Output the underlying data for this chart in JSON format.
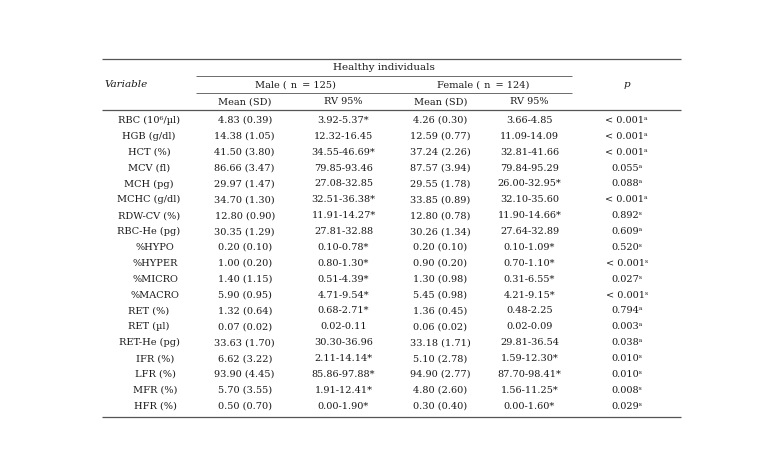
{
  "rows": [
    [
      "RBC (10⁶/µl)",
      "4.83 (0.39)",
      "3.92-5.37*",
      "4.26 (0.30)",
      "3.66-4.85",
      "< 0.001ᵃ"
    ],
    [
      "HGB (g/dl)",
      "14.38 (1.05)",
      "12.32-16.45",
      "12.59 (0.77)",
      "11.09-14.09",
      "< 0.001ᵃ"
    ],
    [
      "HCT (%)",
      "41.50 (3.80)",
      "34.55-46.69*",
      "37.24 (2.26)",
      "32.81-41.66",
      "< 0.001ᵃ"
    ],
    [
      "MCV (fl)",
      "86.66 (3.47)",
      "79.85-93.46",
      "87.57 (3.94)",
      "79.84-95.29",
      "0.055ᵃ"
    ],
    [
      "MCH (pg)",
      "29.97 (1.47)",
      "27.08-32.85",
      "29.55 (1.78)",
      "26.00-32.95*",
      "0.088ᵃ"
    ],
    [
      "MCHC (g/dl)",
      "34.70 (1.30)",
      "32.51-36.38*",
      "33.85 (0.89)",
      "32.10-35.60",
      "< 0.001ᵃ"
    ],
    [
      "RDW-CV (%)",
      "12.80 (0.90)",
      "11.91-14.27*",
      "12.80 (0.78)",
      "11.90-14.66*",
      "0.892ˢ"
    ],
    [
      "RBC-He (pg)",
      "30.35 (1.29)",
      "27.81-32.88",
      "30.26 (1.34)",
      "27.64-32.89",
      "0.609ᵃ"
    ],
    [
      "%HYPO",
      "0.20 (0.10)",
      "0.10-0.78*",
      "0.20 (0.10)",
      "0.10-1.09*",
      "0.520ˢ"
    ],
    [
      "%HYPER",
      "1.00 (0.20)",
      "0.80-1.30*",
      "0.90 (0.20)",
      "0.70-1.10*",
      "< 0.001ˢ"
    ],
    [
      "%MICRO",
      "1.40 (1.15)",
      "0.51-4.39*",
      "1.30 (0.98)",
      "0.31-6.55*",
      "0.027ˢ"
    ],
    [
      "%MACRO",
      "5.90 (0.95)",
      "4.71-9.54*",
      "5.45 (0.98)",
      "4.21-9.15*",
      "< 0.001ˢ"
    ],
    [
      "RET (%)",
      "1.32 (0.64)",
      "0.68-2.71*",
      "1.36 (0.45)",
      "0.48-2.25",
      "0.794ᵃ"
    ],
    [
      "RET (µl)",
      "0.07 (0.02)",
      "0.02-0.11",
      "0.06 (0.02)",
      "0.02-0.09",
      "0.003ᵃ"
    ],
    [
      "RET-He (pg)",
      "33.63 (1.70)",
      "30.30-36.96",
      "33.18 (1.71)",
      "29.81-36.54",
      "0.038ᵃ"
    ],
    [
      "IFR (%)",
      "6.62 (3.22)",
      "2.11-14.14*",
      "5.10 (2.78)",
      "1.59-12.30*",
      "0.010ˢ"
    ],
    [
      "LFR (%)",
      "93.90 (4.45)",
      "85.86-97.88*",
      "94.90 (2.77)",
      "87.70-98.41*",
      "0.010ˢ"
    ],
    [
      "MFR (%)",
      "5.70 (3.55)",
      "1.91-12.41*",
      "4.80 (2.60)",
      "1.56-11.25*",
      "0.008ˢ"
    ],
    [
      "HFR (%)",
      "0.50 (0.70)",
      "0.00-1.90*",
      "0.30 (0.40)",
      "0.00-1.60*",
      "0.029ˢ"
    ]
  ],
  "indented_rows": [
    8,
    9,
    10,
    11,
    15,
    16,
    17,
    18
  ],
  "bg_color": "#ffffff",
  "text_color": "#1a1a1a",
  "line_color": "#555555",
  "font_size": 7.0,
  "header_font_size": 7.5
}
